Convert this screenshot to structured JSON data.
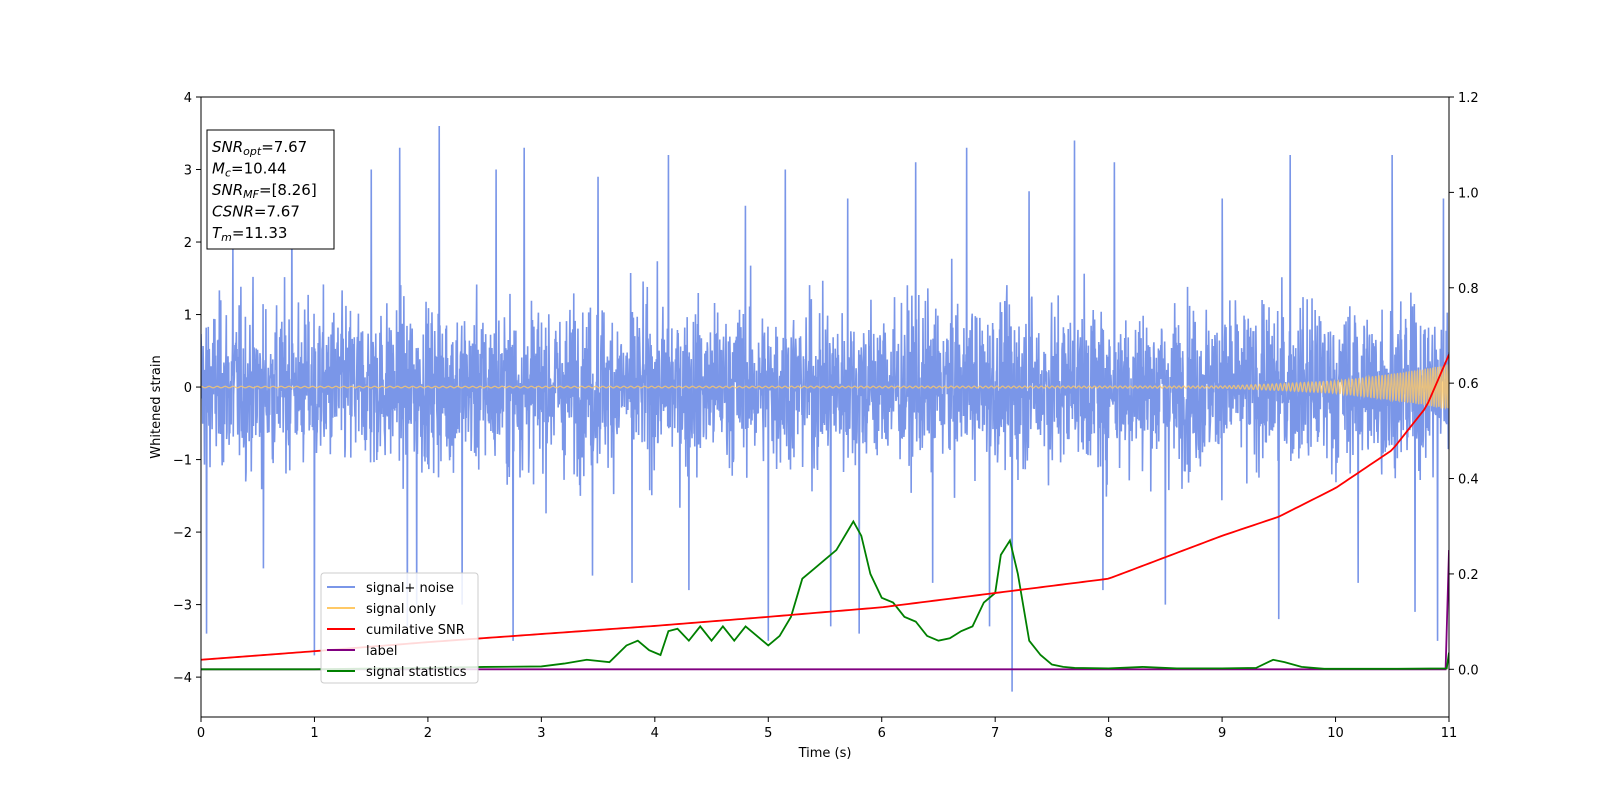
{
  "chart_data": {
    "type": "line",
    "title": "",
    "xlabel": "Time (s)",
    "ylabel": "Whitened strain",
    "xlim": [
      0,
      11
    ],
    "ylim": [
      -4.55,
      4
    ],
    "y2lim": [
      -0.1,
      1.2
    ],
    "x_ticks": [
      "0",
      "1",
      "2",
      "3",
      "4",
      "5",
      "6",
      "7",
      "8",
      "9",
      "10",
      "11"
    ],
    "y_ticks": [
      "−4",
      "−3",
      "−2",
      "−1",
      "0",
      "1",
      "2",
      "3",
      "4"
    ],
    "y2_ticks": [
      "0.0",
      "0.2",
      "0.4",
      "0.6",
      "0.8",
      "1.0",
      "1.2"
    ],
    "grid": false,
    "legend_position": "lower-left",
    "info_box": {
      "lines": [
        {
          "sym": "SNR",
          "sub": "opt",
          "val": "=7.67"
        },
        {
          "sym": "M",
          "sub": "c",
          "val": "=10.44"
        },
        {
          "sym": "SNR",
          "sub": "MF",
          "val": "=[8.26]"
        },
        {
          "sym": "CSNR",
          "sub": "",
          "val": "=7.67"
        },
        {
          "sym": "T",
          "sub": "m",
          "val": "=11.33"
        }
      ]
    },
    "series": [
      {
        "name": "signal+ noise",
        "color": "#7a96e8",
        "axis": "left",
        "summary": "dense white noise, approx. ±1.5 envelope with spikes to about 3.6 / −4.2, spanning 0–11 s",
        "spikes": [
          [
            0.05,
            -3.4
          ],
          [
            0.28,
            2.0
          ],
          [
            0.55,
            -2.5
          ],
          [
            0.8,
            2.5
          ],
          [
            1.0,
            -3.7
          ],
          [
            1.5,
            3.0
          ],
          [
            1.75,
            3.3
          ],
          [
            1.82,
            -3.3
          ],
          [
            1.9,
            -3.0
          ],
          [
            2.1,
            3.6
          ],
          [
            2.3,
            -3.0
          ],
          [
            2.6,
            3.0
          ],
          [
            2.75,
            -3.5
          ],
          [
            2.85,
            3.3
          ],
          [
            3.45,
            -2.6
          ],
          [
            3.5,
            2.9
          ],
          [
            3.8,
            -2.7
          ],
          [
            4.12,
            3.2
          ],
          [
            4.3,
            -2.8
          ],
          [
            4.8,
            2.5
          ],
          [
            5.0,
            -3.5
          ],
          [
            5.15,
            3.0
          ],
          [
            5.55,
            -3.3
          ],
          [
            5.7,
            2.6
          ],
          [
            5.8,
            -3.4
          ],
          [
            6.3,
            3.1
          ],
          [
            6.45,
            -2.7
          ],
          [
            6.75,
            3.3
          ],
          [
            6.95,
            -3.3
          ],
          [
            7.15,
            -4.2
          ],
          [
            7.3,
            2.7
          ],
          [
            7.7,
            3.4
          ],
          [
            7.95,
            -2.8
          ],
          [
            8.05,
            3.1
          ],
          [
            8.5,
            -3.0
          ],
          [
            9.0,
            2.6
          ],
          [
            9.5,
            -3.2
          ],
          [
            9.6,
            3.2
          ],
          [
            10.2,
            -2.7
          ],
          [
            10.5,
            3.2
          ],
          [
            10.7,
            -3.1
          ],
          [
            10.9,
            -3.5
          ],
          [
            10.95,
            2.6
          ]
        ]
      },
      {
        "name": "signal only",
        "color": "#ffc966",
        "axis": "left",
        "summary": "chirp oscillating about 0, amplitude growing from ~0.01 at 0 s to ~0.28 at 11 s"
      },
      {
        "name": "cumilative SNR",
        "color": "#ff0000",
        "axis": "right",
        "x": [
          0,
          1,
          2,
          3,
          4,
          5,
          6,
          7,
          8,
          9,
          9.5,
          10,
          10.5,
          10.8,
          11
        ],
        "y": [
          0.02,
          0.038,
          0.057,
          0.074,
          0.091,
          0.11,
          0.13,
          0.16,
          0.19,
          0.28,
          0.32,
          0.38,
          0.46,
          0.55,
          0.66
        ]
      },
      {
        "name": "label",
        "color": "#800080",
        "axis": "right",
        "x": [
          0,
          10.97,
          11
        ],
        "y": [
          0.0,
          0.0,
          0.25
        ]
      },
      {
        "name": "signal statistics",
        "color": "#008000",
        "axis": "right",
        "x": [
          0,
          1,
          2,
          2.5,
          3,
          3.2,
          3.4,
          3.6,
          3.75,
          3.85,
          3.95,
          4.05,
          4.12,
          4.2,
          4.3,
          4.4,
          4.5,
          4.6,
          4.7,
          4.8,
          4.9,
          5.0,
          5.1,
          5.2,
          5.3,
          5.4,
          5.5,
          5.6,
          5.7,
          5.75,
          5.82,
          5.9,
          6.0,
          6.1,
          6.2,
          6.3,
          6.4,
          6.5,
          6.6,
          6.7,
          6.8,
          6.9,
          7.0,
          7.05,
          7.13,
          7.2,
          7.3,
          7.4,
          7.5,
          7.6,
          7.7,
          8.0,
          8.3,
          8.6,
          9.0,
          9.3,
          9.45,
          9.55,
          9.7,
          9.9,
          10.5,
          10.98,
          11
        ],
        "y": [
          0.0,
          0.0,
          0.003,
          0.005,
          0.006,
          0.012,
          0.02,
          0.015,
          0.05,
          0.06,
          0.04,
          0.03,
          0.08,
          0.085,
          0.06,
          0.09,
          0.06,
          0.09,
          0.06,
          0.09,
          0.07,
          0.05,
          0.07,
          0.11,
          0.19,
          0.21,
          0.23,
          0.25,
          0.29,
          0.31,
          0.28,
          0.2,
          0.15,
          0.14,
          0.11,
          0.1,
          0.07,
          0.06,
          0.065,
          0.08,
          0.09,
          0.14,
          0.16,
          0.24,
          0.27,
          0.2,
          0.06,
          0.03,
          0.01,
          0.005,
          0.003,
          0.002,
          0.005,
          0.002,
          0.002,
          0.003,
          0.02,
          0.015,
          0.005,
          0.001,
          0.001,
          0.002,
          0.035
        ]
      }
    ]
  }
}
